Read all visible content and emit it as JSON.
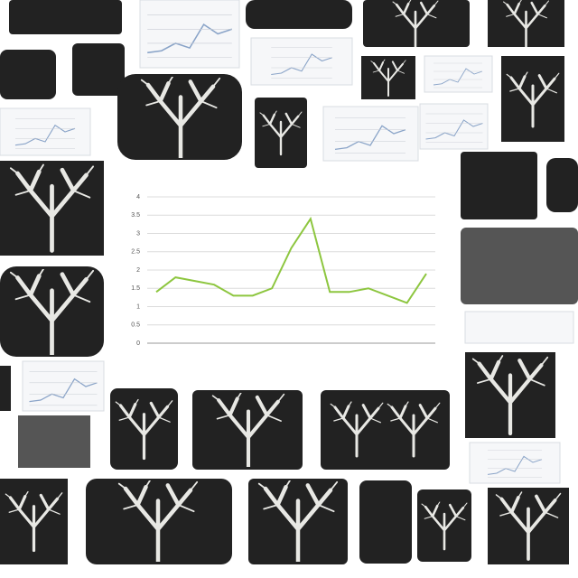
{
  "chart_data": {
    "type": "line",
    "categories": [
      null,
      null,
      null,
      null,
      null,
      null,
      null,
      null,
      null,
      null,
      null,
      null,
      null,
      null,
      null
    ],
    "series": [
      {
        "color": "#8dc63f",
        "values": [
          1.4,
          1.8,
          1.7,
          1.6,
          1.3,
          1.3,
          1.5,
          2.6,
          3.4,
          1.4,
          1.4,
          1.5,
          1.3,
          1.1,
          1.9
        ]
      }
    ],
    "ylim": [
      0,
      4
    ],
    "yticks": [
      0,
      0.5,
      1,
      1.5,
      2,
      2.5,
      3,
      3.5,
      4
    ],
    "grid": true
  }
}
